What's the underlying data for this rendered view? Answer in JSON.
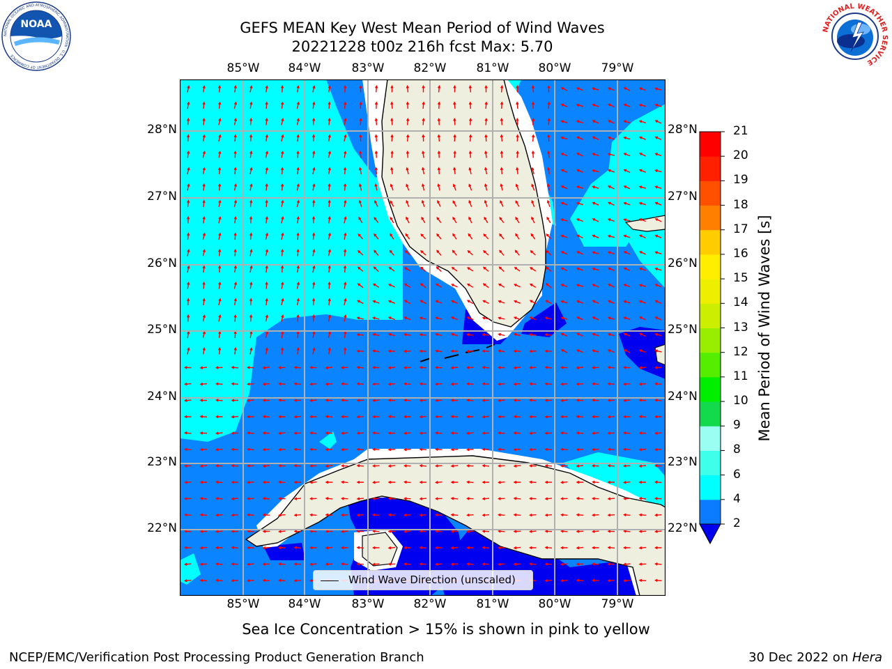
{
  "title": {
    "line1": "GEFS MEAN Key West Mean Period of Wind Waves",
    "line2": "20221228 t00z 216h fcst   Max: 5.70"
  },
  "logos": {
    "noaa_text": "NOAA",
    "noaa_ring": "NATIONAL OCEANIC AND ATMOSPHERIC ADMINISTRATION · U.S. DEPARTMENT OF COMMERCE",
    "nws_ring": "NATIONAL WEATHER SERVICE"
  },
  "map": {
    "lon_labels": [
      "85°W",
      "84°W",
      "83°W",
      "82°W",
      "81°W",
      "80°W",
      "79°W"
    ],
    "lat_labels": [
      "28°N",
      "27°N",
      "26°N",
      "25°N",
      "24°N",
      "23°N",
      "22°N"
    ],
    "legend_label": "Wind Wave Direction (unscaled)",
    "colors": {
      "period_2_4": "#0a84ff",
      "period_4_6": "#00ffff",
      "period_lt_2": "#0000f0",
      "land": "#efefdf",
      "arrow": "#ff0000"
    }
  },
  "colorbar": {
    "label": "Mean Period of Wind Waves [s]",
    "ticks": [
      "2",
      "4",
      "6",
      "8",
      "9",
      "10",
      "11",
      "12",
      "13",
      "14",
      "15",
      "16",
      "17",
      "18",
      "19",
      "20",
      "21"
    ],
    "colors": [
      "#0b7bff",
      "#00ffff",
      "#3dffea",
      "#9afff2",
      "#4cf27a",
      "#13d94d",
      "#00ee00",
      "#55ee00",
      "#99ee00",
      "#ccee00",
      "#eeee00",
      "#ffee00",
      "#ffcc00",
      "#ffa500",
      "#ff8000",
      "#ff5000",
      "#ff2000",
      "#ff0000"
    ],
    "extend_color": "#0000ee"
  },
  "subtitle": "Sea Ice Concentration > 15% is shown in pink to yellow",
  "footer": {
    "left": "NCEP/EMC/Verification Post Processing Product Generation Branch",
    "date": "30 Dec 2022 on ",
    "machine": "Hera"
  }
}
